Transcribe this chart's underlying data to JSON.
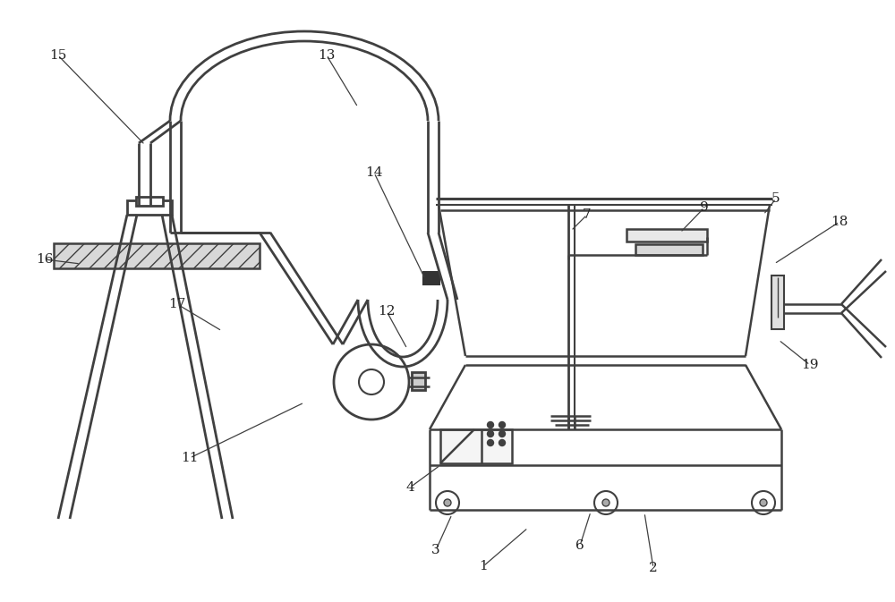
{
  "bg_color": "#ffffff",
  "line_color": "#404040",
  "label_color": "#222222",
  "lw": 1.8
}
